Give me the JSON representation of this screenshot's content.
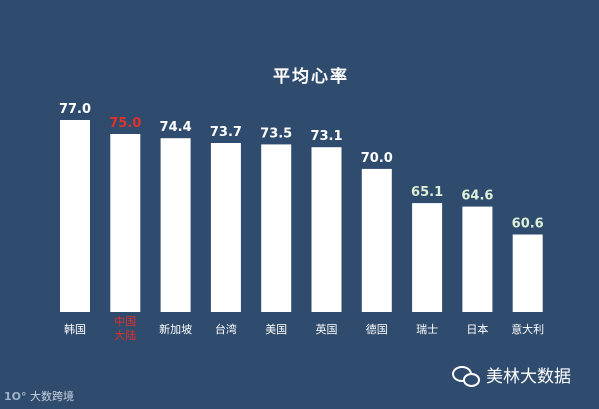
{
  "chart_data": {
    "type": "bar",
    "title": "平均心率",
    "categories": [
      "韩国",
      "中国大陆",
      "新加坡",
      "台湾",
      "美国",
      "英国",
      "德国",
      "瑞士",
      "日本",
      "意大利"
    ],
    "category_lines": [
      [
        "韩国"
      ],
      [
        "中国",
        "大陆"
      ],
      [
        "新加坡"
      ],
      [
        "台湾"
      ],
      [
        "美国"
      ],
      [
        "英国"
      ],
      [
        "德国"
      ],
      [
        "瑞士"
      ],
      [
        "日本"
      ],
      [
        "意大利"
      ]
    ],
    "values": [
      77.0,
      75.0,
      74.4,
      73.7,
      73.5,
      73.1,
      70.0,
      65.1,
      64.6,
      60.6
    ],
    "value_labels": [
      "77.0",
      "75.0",
      "74.4",
      "73.7",
      "73.5",
      "73.1",
      "70.0",
      "65.1",
      "64.6",
      "60.6"
    ],
    "highlight_index": 1,
    "ylim": [
      49.5,
      77.0
    ],
    "grid": false,
    "colors": {
      "background": "#2f4b6e",
      "bar": "#ffffff",
      "label_default": "#ffffff",
      "label_highlight": "#e0322b",
      "label_low": "#dcefd8"
    }
  },
  "watermarks": {
    "left": "大数跨境",
    "right": "美林大数据",
    "right_icon": "wechat-icon"
  }
}
